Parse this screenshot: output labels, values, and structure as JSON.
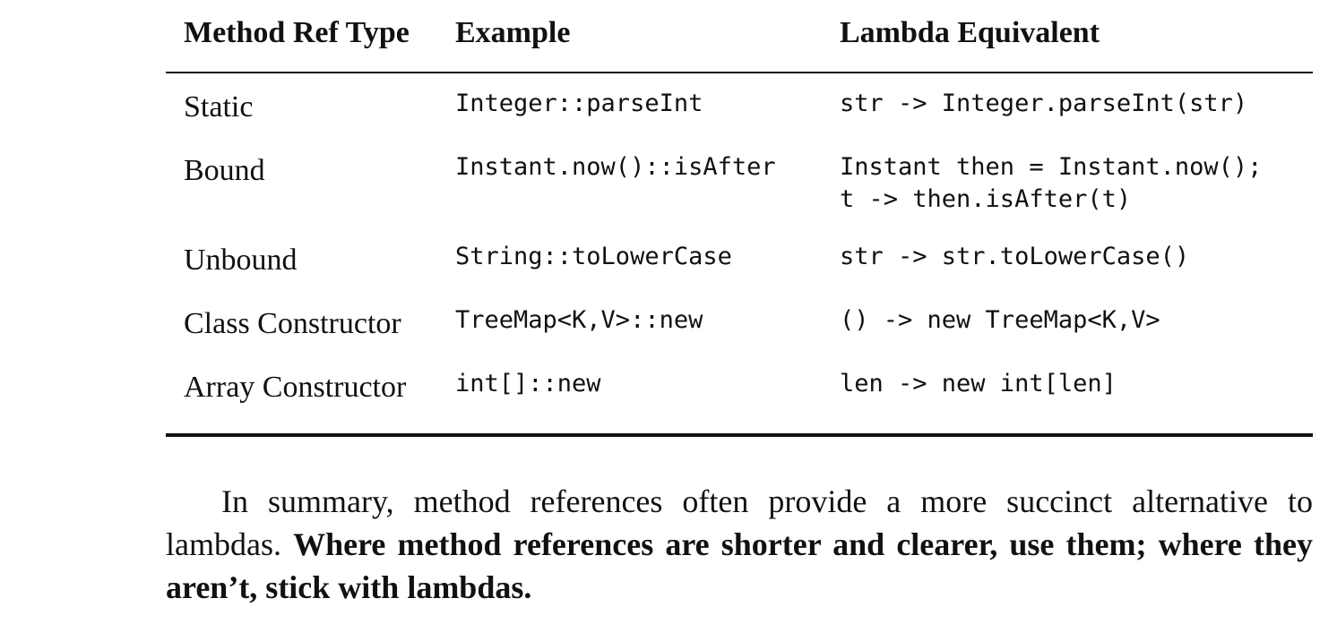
{
  "table": {
    "headers": [
      "Method Ref Type",
      "Example",
      "Lambda Equivalent"
    ],
    "rows": [
      {
        "type": "Static",
        "example": "Integer::parseInt",
        "lambda": "str -> Integer.parseInt(str)"
      },
      {
        "type": "Bound",
        "example": "Instant.now()::isAfter",
        "lambda": "Instant then = Instant.now();\nt -> then.isAfter(t)"
      },
      {
        "type": "Unbound",
        "example": "String::toLowerCase",
        "lambda": "str -> str.toLowerCase()"
      },
      {
        "type": "Class Constructor",
        "example": "TreeMap<K,V>::new",
        "lambda": "() -> new TreeMap<K,V>"
      },
      {
        "type": "Array Constructor",
        "example": "int[]::new",
        "lambda": "len -> new int[len]"
      }
    ]
  },
  "summary": {
    "plain": "In summary, method references often provide a more succinct alternative to lambdas. ",
    "bold": "Where method references are shorter and clearer, use them; where they aren’t, stick with lambdas."
  }
}
